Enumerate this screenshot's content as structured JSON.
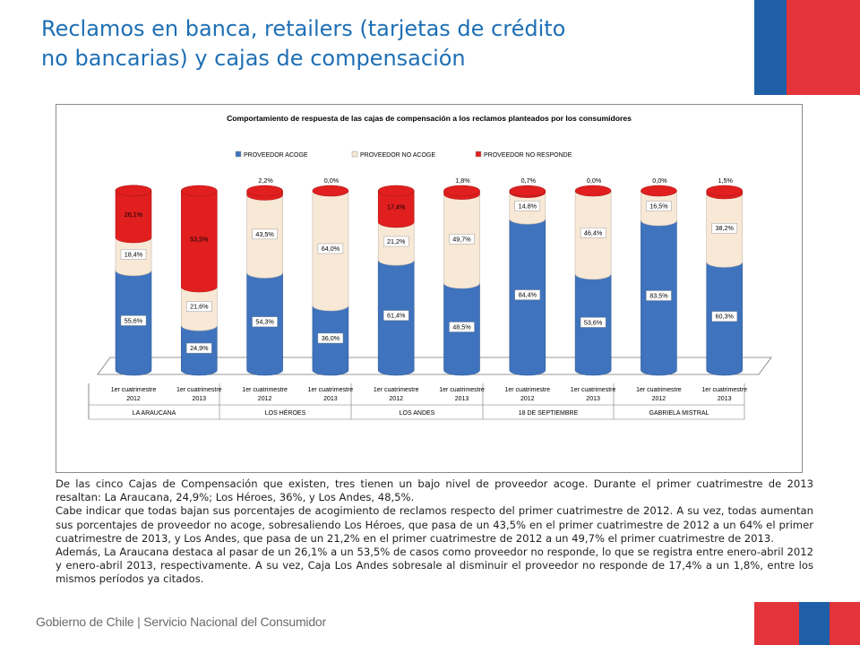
{
  "title": {
    "line1": "Reclamos en banca, retailers (tarjetas de crédito",
    "line2": "no bancarias) y cajas de compensación"
  },
  "chart_data": {
    "type": "bar",
    "stacked": true,
    "percent": true,
    "title": "Comportamiento de respuesta de las cajas de compensación a los reclamos planteados por los consumidores",
    "legend_position": "top",
    "groups": [
      "LA ARAUCANA",
      "LOS HÉROES",
      "LOS ANDES",
      "18 DE SEPTIEMBRE",
      "GABRIELA MISTRAL"
    ],
    "period_labels": [
      [
        "1er cuatrimestre",
        "2012"
      ],
      [
        "1er cuatrimestre",
        "2013"
      ]
    ],
    "series": [
      {
        "name": "PROVEEDOR ACOGE",
        "color": "#3f73bd",
        "values": [
          55.6,
          24.9,
          54.3,
          36.0,
          61.4,
          48.5,
          84.4,
          53.6,
          83.5,
          60.3
        ],
        "labels": [
          "55,6%",
          "24,9%",
          "54,3%",
          "36,0%",
          "61,4%",
          "48,5%",
          "84,4%",
          "53,6%",
          "83,5%",
          "60,3%"
        ]
      },
      {
        "name": "PROVEEDOR NO ACOGE",
        "color": "#f8e8d6",
        "values": [
          18.4,
          21.6,
          43.5,
          64.0,
          21.2,
          49.7,
          14.8,
          46.4,
          16.5,
          38.2
        ],
        "labels": [
          "18,4%",
          "21,6%",
          "43,5%",
          "64,0%",
          "21,2%",
          "49,7%",
          "14,8%",
          "46,4%",
          "16,5%",
          "38,2%"
        ]
      },
      {
        "name": "PROVEEDOR NO RESPONDE",
        "color": "#e11f1f",
        "values": [
          26.1,
          53.5,
          2.2,
          0.0,
          17.4,
          1.8,
          0.7,
          0.0,
          0.0,
          1.5
        ],
        "labels": [
          "26,1%",
          "53,5%",
          "2,2%",
          "0,0%",
          "17,4%",
          "1,8%",
          "0,7%",
          "0,0%",
          "0,0%",
          "1,5%"
        ]
      }
    ]
  },
  "body": {
    "p1": "De las cinco Cajas de Compensación que existen, tres tienen un bajo nivel de proveedor acoge. Durante el primer cuatrimestre de 2013 resaltan: La Araucana, 24,9%; Los Héroes, 36%, y Los Andes, 48,5%.",
    "p2": "Cabe indicar que todas bajan sus porcentajes de acogimiento de reclamos respecto del primer cuatrimestre de 2012. A su vez, todas aumentan sus porcentajes de proveedor no acoge, sobresaliendo Los Héroes, que pasa de un 43,5% en el primer cuatrimestre de 2012 a un 64% el primer cuatrimestre de 2013, y Los Andes, que pasa de un 21,2% en el primer cuatrimestre de 2012 a un 49,7% el primer cuatrimestre de 2013.",
    "p3": "Además, La Araucana destaca al pasar de un 26,1% a un 53,5% de casos como proveedor no responde, lo que se registra entre enero-abril 2012 y enero-abril 2013, respectivamente. A su vez, Caja Los Andes sobresale al disminuir el proveedor no responde de 17,4% a un 1,8%, entre los mismos períodos ya citados."
  },
  "footer": {
    "text": "Gobierno de Chile | Servicio Nacional del Consumidor"
  }
}
